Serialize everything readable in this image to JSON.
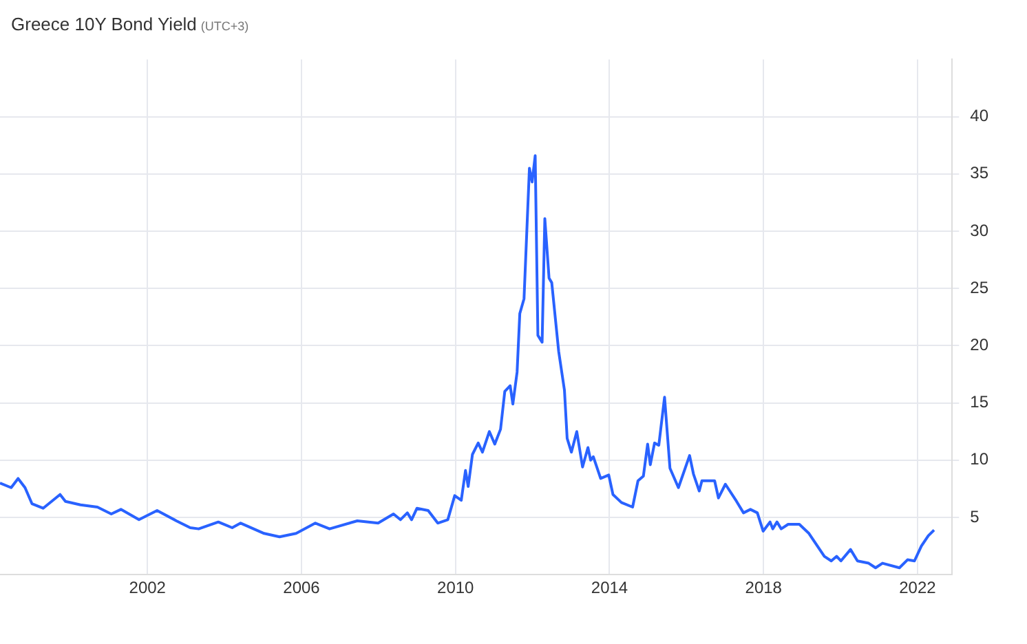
{
  "chart_data": {
    "type": "line",
    "title": "Greece 10Y Bond Yield",
    "subtitle": "(UTC+3)",
    "x": [
      1998.17,
      1998.46,
      1998.64,
      1998.82,
      1999.0,
      1999.29,
      1999.73,
      1999.87,
      2000.26,
      2000.7,
      2001.06,
      2001.31,
      2001.78,
      2002.25,
      2002.75,
      2003.11,
      2003.33,
      2003.84,
      2004.2,
      2004.42,
      2005.03,
      2005.43,
      2005.86,
      2006.36,
      2006.73,
      2007.45,
      2007.99,
      2008.39,
      2008.57,
      2008.75,
      2008.86,
      2009.0,
      2009.29,
      2009.54,
      2009.8,
      2009.98,
      2010.15,
      2010.26,
      2010.33,
      2010.44,
      2010.59,
      2010.7,
      2010.88,
      2011.02,
      2011.17,
      2011.28,
      2011.42,
      2011.49,
      2011.6,
      2011.67,
      2011.78,
      2011.92,
      2011.99,
      2012.07,
      2012.14,
      2012.25,
      2012.32,
      2012.43,
      2012.5,
      2012.68,
      2012.83,
      2012.9,
      2013.01,
      2013.15,
      2013.3,
      2013.44,
      2013.51,
      2013.58,
      2013.77,
      2013.98,
      2014.09,
      2014.31,
      2014.6,
      2014.74,
      2014.88,
      2014.99,
      2015.06,
      2015.17,
      2015.28,
      2015.43,
      2015.57,
      2015.79,
      2016.08,
      2016.18,
      2016.33,
      2016.4,
      2016.73,
      2016.83,
      2017.01,
      2017.3,
      2017.48,
      2017.66,
      2017.84,
      2017.99,
      2018.17,
      2018.24,
      2018.35,
      2018.46,
      2018.64,
      2018.93,
      2019.18,
      2019.58,
      2019.76,
      2019.9,
      2020.01,
      2020.26,
      2020.44,
      2020.73,
      2020.91,
      2021.09,
      2021.53,
      2021.74,
      2021.92,
      2022.1,
      2022.28,
      2022.43
    ],
    "values": [
      8.0,
      7.6,
      8.4,
      7.6,
      6.2,
      5.8,
      7.0,
      6.4,
      6.1,
      5.9,
      5.3,
      5.7,
      4.8,
      5.6,
      4.7,
      4.1,
      4.0,
      4.6,
      4.1,
      4.5,
      3.6,
      3.3,
      3.6,
      4.5,
      4.0,
      4.7,
      4.5,
      5.3,
      4.8,
      5.4,
      4.8,
      5.8,
      5.6,
      4.5,
      4.8,
      6.9,
      6.5,
      9.1,
      7.7,
      10.5,
      11.5,
      10.7,
      12.5,
      11.4,
      12.7,
      16.0,
      16.5,
      14.9,
      17.7,
      22.8,
      24.1,
      35.5,
      34.3,
      36.6,
      20.9,
      20.3,
      31.1,
      25.9,
      25.5,
      19.5,
      16.1,
      11.9,
      10.7,
      12.5,
      9.4,
      11.1,
      10.0,
      10.3,
      8.4,
      8.7,
      7.0,
      6.3,
      5.9,
      8.2,
      8.6,
      11.4,
      9.6,
      11.5,
      11.3,
      15.5,
      9.3,
      7.6,
      10.4,
      8.8,
      7.3,
      8.2,
      8.2,
      6.7,
      7.9,
      6.4,
      5.4,
      5.7,
      5.4,
      3.8,
      4.6,
      4.0,
      4.6,
      4.0,
      4.4,
      4.4,
      3.6,
      1.6,
      1.2,
      1.6,
      1.2,
      2.2,
      1.2,
      1.0,
      0.6,
      1.0,
      0.6,
      1.3,
      1.2,
      2.5,
      3.4,
      3.9
    ],
    "color": "#2962ff",
    "xlim": [
      1998.17,
      2022.9
    ],
    "xticks": [
      2002,
      2006,
      2010,
      2014,
      2018,
      2022
    ],
    "ylim": [
      0,
      45
    ],
    "yticks": [
      5,
      10,
      15,
      20,
      25,
      30,
      35,
      40
    ],
    "grid": true,
    "marker": "none",
    "line_style": "solid"
  }
}
